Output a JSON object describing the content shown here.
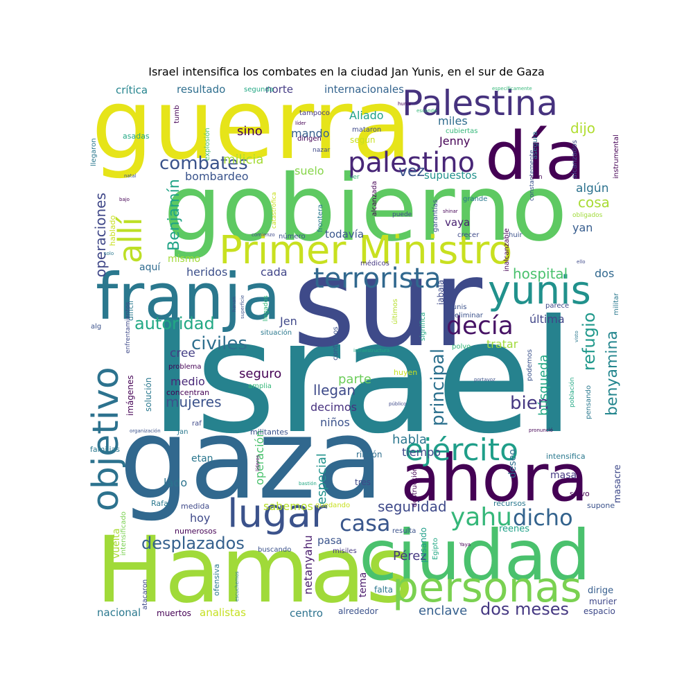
{
  "chart_data": {
    "type": "wordcloud",
    "title": "Israel intensifica los combates en la ciudad Jan Yunis, en el sur de Gaza",
    "words": [
      {
        "text": "Israel",
        "weight": 100,
        "color": "#26828e"
      },
      {
        "text": "sur",
        "weight": 78,
        "color": "#3e4a89"
      },
      {
        "text": "gaza",
        "weight": 75,
        "color": "#31688e"
      },
      {
        "text": "guerra",
        "weight": 70,
        "color": "#e6e419"
      },
      {
        "text": "gobierno",
        "weight": 68,
        "color": "#5ec962"
      },
      {
        "text": "Hamas",
        "weight": 70,
        "color": "#a0da39"
      },
      {
        "text": "ciudad",
        "weight": 55,
        "color": "#4ac16d"
      },
      {
        "text": "ahora",
        "weight": 55,
        "color": "#440154"
      },
      {
        "text": "día",
        "weight": 52,
        "color": "#440154"
      },
      {
        "text": "franja",
        "weight": 52,
        "color": "#2a788e"
      },
      {
        "text": "Palestina",
        "weight": 36,
        "color": "#46327e"
      },
      {
        "text": "Primer Ministro",
        "weight": 40,
        "color": "#c8e020"
      },
      {
        "text": "terrorista",
        "weight": 30,
        "color": "#31688e"
      },
      {
        "text": "yunis",
        "weight": 34,
        "color": "#21918c"
      },
      {
        "text": "ejército",
        "weight": 33,
        "color": "#1f9e89"
      },
      {
        "text": "personas",
        "weight": 38,
        "color": "#7ad151"
      },
      {
        "text": "lugar",
        "weight": 36,
        "color": "#3b528b"
      },
      {
        "text": "objetivo",
        "weight": 34,
        "color": "#2c728e"
      },
      {
        "text": "palestino",
        "weight": 28,
        "color": "#482677"
      },
      {
        "text": "decía",
        "weight": 24,
        "color": "#471365"
      },
      {
        "text": "yahu",
        "weight": 26,
        "color": "#35b779"
      },
      {
        "text": "dicho",
        "weight": 24,
        "color": "#33638d"
      },
      {
        "text": "casa",
        "weight": 22,
        "color": "#39568c"
      },
      {
        "text": "allí",
        "weight": 26,
        "color": "#bddf26"
      },
      {
        "text": "civiles",
        "weight": 18,
        "color": "#2e6f8e"
      },
      {
        "text": "autoridad",
        "weight": 16,
        "color": "#22a884"
      },
      {
        "text": "combates",
        "weight": 18,
        "color": "#3a538b"
      },
      {
        "text": "refugio",
        "weight": 18,
        "color": "#1f988b"
      },
      {
        "text": "benyamina",
        "weight": 16,
        "color": "#24868e"
      },
      {
        "text": "Benjamín",
        "weight": 16,
        "color": "#20a386"
      },
      {
        "text": "principal",
        "weight": 18,
        "color": "#2d718e"
      },
      {
        "text": "desplazados",
        "weight": 17,
        "color": "#34608d"
      },
      {
        "text": "operaciones",
        "weight": 15,
        "color": "#3f4788"
      },
      {
        "text": "mujeres",
        "weight": 14,
        "color": "#3b528b"
      },
      {
        "text": "seguridad",
        "weight": 14,
        "color": "#3e4989"
      },
      {
        "text": "hospital",
        "weight": 14,
        "color": "#4ac16d"
      },
      {
        "text": "bien",
        "weight": 17,
        "color": "#453781"
      },
      {
        "text": "dos meses",
        "weight": 16,
        "color": "#453882"
      },
      {
        "text": "enclave",
        "weight": 13,
        "color": "#355f8d"
      },
      {
        "text": "Pérez",
        "weight": 13,
        "color": "#453781"
      },
      {
        "text": "vez",
        "weight": 16,
        "color": "#3b528b"
      },
      {
        "text": "milicia",
        "weight": 14,
        "color": "#a5db36"
      },
      {
        "text": "bombardeo",
        "weight": 13,
        "color": "#3a548c"
      },
      {
        "text": "miles",
        "weight": 13,
        "color": "#2f6c8e"
      },
      {
        "text": "Jenny",
        "weight": 13,
        "color": "#440154"
      },
      {
        "text": "dijo",
        "weight": 13,
        "color": "#b0dd2f"
      },
      {
        "text": "mando",
        "weight": 13,
        "color": "#355f8d"
      },
      {
        "text": "sino",
        "weight": 13,
        "color": "#440154"
      },
      {
        "text": "resultado",
        "weight": 12,
        "color": "#2e6e8e"
      },
      {
        "text": "crítica",
        "weight": 12,
        "color": "#25848e"
      },
      {
        "text": "norte",
        "weight": 12,
        "color": "#443b84"
      },
      {
        "text": "internacionales",
        "weight": 12,
        "color": "#33638d"
      },
      {
        "text": "Aliado",
        "weight": 12,
        "color": "#1fa188"
      },
      {
        "text": "suelo",
        "weight": 12,
        "color": "#86d549"
      },
      {
        "text": "supuestos",
        "weight": 12,
        "color": "#21918c"
      },
      {
        "text": "algún",
        "weight": 12,
        "color": "#2c728e"
      },
      {
        "text": "cosa",
        "weight": 13,
        "color": "#a8db34"
      },
      {
        "text": "yan",
        "weight": 12,
        "color": "#365c8d"
      },
      {
        "text": "todavía",
        "weight": 12,
        "color": "#39568c"
      },
      {
        "text": "vaya",
        "weight": 12,
        "color": "#482071"
      },
      {
        "text": "heridos",
        "weight": 12,
        "color": "#3c4f8a"
      },
      {
        "text": "cada",
        "weight": 12,
        "color": "#404588"
      },
      {
        "text": "aquí",
        "weight": 11,
        "color": "#2f6b8e"
      },
      {
        "text": "mismo",
        "weight": 11,
        "color": "#a2da37"
      },
      {
        "text": "Jen",
        "weight": 12,
        "color": "#3f4889"
      },
      {
        "text": "cree",
        "weight": 12,
        "color": "#433e85"
      },
      {
        "text": "medio",
        "weight": 11,
        "color": "#482878"
      },
      {
        "text": "seguro",
        "weight": 13,
        "color": "#440154"
      },
      {
        "text": "parte",
        "weight": 13,
        "color": "#6ccd5a"
      },
      {
        "text": "llegan",
        "weight": 14,
        "color": "#3e4a89"
      },
      {
        "text": "decimos",
        "weight": 12,
        "color": "#46307e"
      },
      {
        "text": "niños",
        "weight": 12,
        "color": "#3b528b"
      },
      {
        "text": "habla",
        "weight": 13,
        "color": "#2a768e"
      },
      {
        "text": "tiempo",
        "weight": 12,
        "color": "#3e4989"
      },
      {
        "text": "tratar",
        "weight": 12,
        "color": "#a0da39"
      },
      {
        "text": "última",
        "weight": 12,
        "color": "#404588"
      },
      {
        "text": "búsqueda",
        "weight": 14,
        "color": "#22a785"
      },
      {
        "text": "dos",
        "weight": 12,
        "color": "#31688e"
      },
      {
        "text": "hoy",
        "weight": 12,
        "color": "#3e4989"
      },
      {
        "text": "lado",
        "weight": 11,
        "color": "#2c738e"
      },
      {
        "text": "etan",
        "weight": 11,
        "color": "#2a768e"
      },
      {
        "text": "sabemos",
        "weight": 12,
        "color": "#b5de2b"
      },
      {
        "text": "especial",
        "weight": 12,
        "color": "#20928c"
      },
      {
        "text": "operación",
        "weight": 12,
        "color": "#4ac16d"
      },
      {
        "text": "masa",
        "weight": 11,
        "color": "#453882"
      },
      {
        "text": "deseo",
        "weight": 11,
        "color": "#2e6e8e"
      },
      {
        "text": "netanyahu",
        "weight": 12,
        "color": "#481b6d"
      },
      {
        "text": "pasa",
        "weight": 11,
        "color": "#3a548c"
      },
      {
        "text": "analistas",
        "weight": 12,
        "color": "#c5e021"
      },
      {
        "text": "nacional",
        "weight": 12,
        "color": "#2a788e"
      },
      {
        "text": "centro",
        "weight": 12,
        "color": "#2c728e"
      },
      {
        "text": "muertos",
        "weight": 10,
        "color": "#440154"
      },
      {
        "text": "alrededor",
        "weight": 10,
        "color": "#3b528b"
      },
      {
        "text": "masacre",
        "weight": 10,
        "color": "#3e4989"
      },
      {
        "text": "dirige",
        "weight": 10,
        "color": "#365d8d"
      },
      {
        "text": "murier",
        "weight": 10,
        "color": "#3f4788"
      },
      {
        "text": "espacio",
        "weight": 10,
        "color": "#3e4989"
      },
      {
        "text": "reenes",
        "weight": 10,
        "color": "#1fa188"
      },
      {
        "text": "vuelta",
        "weight": 11,
        "color": "#a8db34"
      },
      {
        "text": "tema",
        "weight": 11,
        "color": "#481769"
      },
      {
        "text": "falta",
        "weight": 10,
        "color": "#2a768e"
      },
      {
        "text": "rincón",
        "weight": 10,
        "color": "#2e6e8e"
      },
      {
        "text": "tres",
        "weight": 10,
        "color": "#3e4a89"
      },
      {
        "text": "familias",
        "weight": 9,
        "color": "#2a788e"
      },
      {
        "text": "Rafa",
        "weight": 9,
        "color": "#2a788e"
      },
      {
        "text": "salvo",
        "weight": 9,
        "color": "#440154"
      },
      {
        "text": "supone",
        "weight": 9,
        "color": "#3b528b"
      },
      {
        "text": "recursos",
        "weight": 9,
        "color": "#2a788e"
      },
      {
        "text": "intensifica",
        "weight": 9,
        "color": "#2a788e"
      },
      {
        "text": "medida",
        "weight": 9,
        "color": "#3e4989"
      },
      {
        "text": "numerosos",
        "weight": 9,
        "color": "#440154"
      },
      {
        "text": "buscando",
        "weight": 8,
        "color": "#3b528b"
      },
      {
        "text": "misiles",
        "weight": 8,
        "color": "#453781"
      },
      {
        "text": "resulta",
        "weight": 8,
        "color": "#3b528b"
      },
      {
        "text": "pasando",
        "weight": 9,
        "color": "#1f9e89"
      },
      {
        "text": "ofensiva",
        "weight": 8,
        "color": "#2a788e"
      },
      {
        "text": "atacaron",
        "weight": 8,
        "color": "#3e4989"
      },
      {
        "text": "llegaron",
        "weight": 8,
        "color": "#2a788e"
      },
      {
        "text": "asadas",
        "weight": 8,
        "color": "#22a884"
      },
      {
        "text": "tumb",
        "weight": 7,
        "color": "#440154"
      },
      {
        "text": "explosión",
        "weight": 8,
        "color": "#4ac16d"
      },
      {
        "text": "segunda",
        "weight": 8,
        "color": "#22a884"
      },
      {
        "text": "tampoco",
        "weight": 8,
        "color": "#453781"
      },
      {
        "text": "mataron",
        "weight": 8,
        "color": "#3e4989"
      },
      {
        "text": "dirigen",
        "weight": 8,
        "color": "#440154"
      },
      {
        "text": "cubiertas",
        "weight": 8,
        "color": "#35b779"
      },
      {
        "text": "según",
        "weight": 10,
        "color": "#c8e020"
      },
      {
        "text": "instrumental",
        "weight": 8,
        "color": "#440154"
      },
      {
        "text": "asegura",
        "weight": 8,
        "color": "#2a788e"
      },
      {
        "text": "alcanzados",
        "weight": 8,
        "color": "#3e4989"
      },
      {
        "text": "constantemente",
        "weight": 7,
        "color": "#3b528b"
      },
      {
        "text": "ven",
        "weight": 7,
        "color": "#440154"
      },
      {
        "text": "grande",
        "weight": 8,
        "color": "#2a788e"
      },
      {
        "text": "obligados",
        "weight": 7,
        "color": "#a0da39"
      },
      {
        "text": "crecer",
        "weight": 8,
        "color": "#3e4989"
      },
      {
        "text": "huir",
        "weight": 8,
        "color": "#3b528b"
      },
      {
        "text": "inalcanzable",
        "weight": 8,
        "color": "#440154"
      },
      {
        "text": "médicos",
        "weight": 8,
        "color": "#453781"
      },
      {
        "text": "número",
        "weight": 8,
        "color": "#3b528b"
      },
      {
        "text": "frontera",
        "weight": 8,
        "color": "#2a788e"
      },
      {
        "text": "alcanzada",
        "weight": 8,
        "color": "#440154"
      },
      {
        "text": "garantías",
        "weight": 8,
        "color": "#3b528b"
      },
      {
        "text": "puede",
        "weight": 7,
        "color": "#3e4989"
      },
      {
        "text": "hablado",
        "weight": 8,
        "color": "#c8e020"
      },
      {
        "text": "difícil",
        "weight": 8,
        "color": "#2a788e"
      },
      {
        "text": "enfrentamientos",
        "weight": 7,
        "color": "#3e4989"
      },
      {
        "text": "imágenes",
        "weight": 9,
        "color": "#440154"
      },
      {
        "text": "solución",
        "weight": 9,
        "color": "#2a788e"
      },
      {
        "text": "concentran",
        "weight": 9,
        "color": "#440154"
      },
      {
        "text": "problema",
        "weight": 8,
        "color": "#440154"
      },
      {
        "text": "continuos",
        "weight": 8,
        "color": "#3b528b"
      },
      {
        "text": "situación",
        "weight": 8,
        "color": "#2a788e"
      },
      {
        "text": "eliminar",
        "weight": 8,
        "color": "#3b528b"
      },
      {
        "text": "jabala",
        "weight": 9,
        "color": "#3e4989"
      },
      {
        "text": "junis",
        "weight": 8,
        "color": "#3b528b"
      },
      {
        "text": "parece",
        "weight": 8,
        "color": "#3e4989"
      },
      {
        "text": "militar",
        "weight": 8,
        "color": "#2a788e"
      },
      {
        "text": "últimos",
        "weight": 8,
        "color": "#b5de2b"
      },
      {
        "text": "significa",
        "weight": 8,
        "color": "#22a884"
      },
      {
        "text": "polvo",
        "weight": 8,
        "color": "#35b779"
      },
      {
        "text": "podemos",
        "weight": 8,
        "color": "#3b528b"
      },
      {
        "text": "pensando",
        "weight": 8,
        "color": "#2a788e"
      },
      {
        "text": "población",
        "weight": 8,
        "color": "#22a884"
      },
      {
        "text": "huyen",
        "weight": 9,
        "color": "#c8e020"
      },
      {
        "text": "amplia",
        "weight": 8,
        "color": "#35b779"
      },
      {
        "text": "militantes",
        "weight": 9,
        "color": "#3b528b"
      },
      {
        "text": "raf",
        "weight": 8,
        "color": "#3e4989"
      },
      {
        "text": "Jan",
        "weight": 8,
        "color": "#2a788e"
      },
      {
        "text": "quedando",
        "weight": 8,
        "color": "#c8e020"
      },
      {
        "text": "destrucción",
        "weight": 8,
        "color": "#440154"
      },
      {
        "text": "intensificado",
        "weight": 8,
        "color": "#7ad151"
      },
      {
        "text": "Egipto",
        "weight": 8,
        "color": "#22a884"
      },
      {
        "text": "alg",
        "weight": 8,
        "color": "#3b528b"
      },
      {
        "text": "llegados",
        "weight": 7,
        "color": "#35b779"
      },
      {
        "text": "específicamente",
        "weight": 6,
        "color": "#35b779"
      },
      {
        "text": "hunis",
        "weight": 6,
        "color": "#440154"
      },
      {
        "text": "esconde",
        "weight": 6,
        "color": "#35b779"
      },
      {
        "text": "líder",
        "weight": 6,
        "color": "#440154"
      },
      {
        "text": "nazar",
        "weight": 7,
        "color": "#3e4989"
      },
      {
        "text": "natal",
        "weight": 6,
        "color": "#3b528b"
      },
      {
        "text": "bajo",
        "weight": 6,
        "color": "#440154"
      },
      {
        "text": "catastrófica",
        "weight": 7,
        "color": "#c8e020"
      },
      {
        "text": "shinar",
        "weight": 6,
        "color": "#440154"
      },
      {
        "text": "comienzo",
        "weight": 6,
        "color": "#3e4989"
      },
      {
        "text": "solo",
        "weight": 6,
        "color": "#2a788e"
      },
      {
        "text": "ello",
        "weight": 6,
        "color": "#3e4989"
      },
      {
        "text": "hanan",
        "weight": 6,
        "color": "#3e4989"
      },
      {
        "text": "superficie",
        "weight": 6,
        "color": "#3b528b"
      },
      {
        "text": "visto",
        "weight": 6,
        "color": "#2a788e"
      },
      {
        "text": "infraestructura",
        "weight": 6,
        "color": "#22a884"
      },
      {
        "text": "portavoz",
        "weight": 6,
        "color": "#3b528b"
      },
      {
        "text": "público",
        "weight": 6,
        "color": "#3e4989"
      },
      {
        "text": "organización",
        "weight": 6,
        "color": "#3b528b"
      },
      {
        "text": "pronunció",
        "weight": 6,
        "color": "#440154"
      },
      {
        "text": "líderes",
        "weight": 6,
        "color": "#440154"
      },
      {
        "text": "bastión",
        "weight": 6,
        "color": "#22a884"
      },
      {
        "text": "escuchemos",
        "weight": 6,
        "color": "#2a788e"
      },
      {
        "text": "Yaya",
        "weight": 6,
        "color": "#440154"
      },
      {
        "text": "ver",
        "weight": 7,
        "color": "#35b779"
      }
    ]
  }
}
